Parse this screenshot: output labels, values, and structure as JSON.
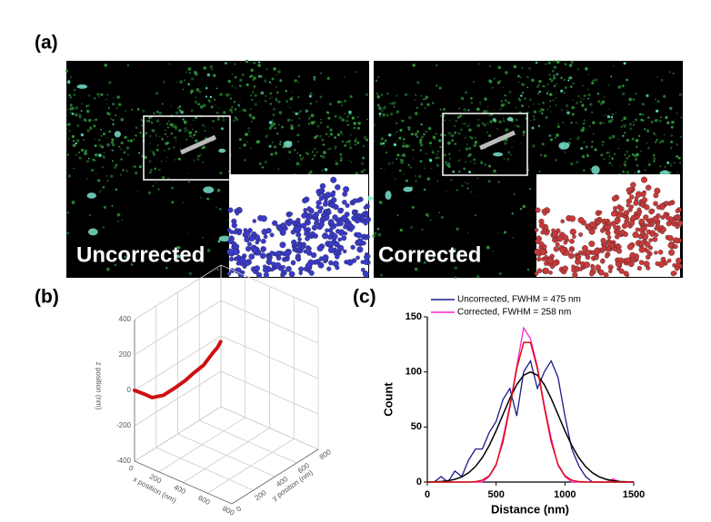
{
  "figure": {
    "panel_labels": [
      "(a)",
      "(b)",
      "(c)"
    ],
    "images": [
      {
        "label": "Uncorrected"
      },
      {
        "label": "Corrected"
      }
    ]
  },
  "chart_data": [
    {
      "type": "line3d",
      "xlabel": "x position (nm)",
      "ylabel": "y position (nm)",
      "zlabel": "z position (nm)",
      "xlim": [
        0,
        800
      ],
      "ylim": [
        0,
        800
      ],
      "zlim": [
        -400,
        400
      ],
      "xticks": [
        0,
        200,
        400,
        600,
        800
      ],
      "yticks": [
        0,
        200,
        400,
        600,
        800
      ],
      "zticks": [
        -400,
        -200,
        0,
        200,
        400
      ],
      "grid": true,
      "color": "#cc1111",
      "x": [
        0,
        60,
        100,
        130,
        150,
        170,
        180,
        195,
        200,
        210,
        220
      ],
      "y": [
        0,
        20,
        50,
        120,
        200,
        280,
        350,
        420,
        500,
        530,
        550
      ],
      "z": [
        0,
        -10,
        -30,
        -35,
        -20,
        0,
        20,
        40,
        80,
        100,
        130
      ]
    },
    {
      "type": "line",
      "xlabel": "Distance (nm)",
      "ylabel": "Count",
      "xlim": [
        0,
        1500
      ],
      "ylim": [
        0,
        150
      ],
      "xticks": [
        0,
        500,
        1000,
        1500
      ],
      "yticks": [
        0,
        50,
        100,
        150
      ],
      "legend": "upper left",
      "x": [
        0,
        50,
        100,
        150,
        200,
        250,
        300,
        350,
        400,
        450,
        500,
        550,
        600,
        650,
        700,
        750,
        800,
        850,
        900,
        950,
        1000,
        1050,
        1100,
        1150,
        1200,
        1250,
        1300,
        1350,
        1400,
        1450,
        1500
      ],
      "series": [
        {
          "name": "Uncorrected, FWHM = 475 nm",
          "color": "#1a1a8c",
          "values": [
            0,
            0,
            5,
            0,
            10,
            5,
            20,
            30,
            30,
            45,
            55,
            75,
            85,
            60,
            100,
            110,
            85,
            100,
            110,
            95,
            60,
            30,
            15,
            5,
            0,
            0,
            0,
            0,
            0,
            0,
            0
          ]
        },
        {
          "name": "Corrected, FWHM = 258 nm",
          "color": "#ff22cc",
          "values": [
            0,
            0,
            0,
            0,
            0,
            0,
            0,
            0,
            0,
            5,
            15,
            40,
            70,
            105,
            140,
            130,
            105,
            70,
            40,
            15,
            5,
            0,
            0,
            0,
            0,
            0,
            0,
            3,
            0,
            0,
            0
          ]
        }
      ],
      "fits": [
        {
          "color": "#000000",
          "values": [
            0.1,
            0.25,
            0.56,
            1.2,
            2.5,
            4.7,
            8.4,
            14.1,
            22.3,
            33.2,
            46.5,
            61.3,
            75.9,
            88.5,
            97,
            100,
            97,
            88.5,
            75.9,
            61.3,
            46.5,
            33.2,
            22.3,
            14.1,
            8.4,
            4.7,
            2.5,
            1.2,
            0.56,
            0.25,
            0.1
          ]
        },
        {
          "color": "#dd1111",
          "values": [
            0,
            0,
            0,
            0,
            0,
            0,
            0.1,
            0.4,
            1.7,
            5.7,
            16,
            36.6,
            68.1,
            103,
            126.7,
            126.7,
            103,
            68.1,
            36.6,
            16,
            5.7,
            1.7,
            0.4,
            0.1,
            0,
            0,
            0,
            0,
            0,
            0,
            0
          ]
        }
      ]
    }
  ]
}
